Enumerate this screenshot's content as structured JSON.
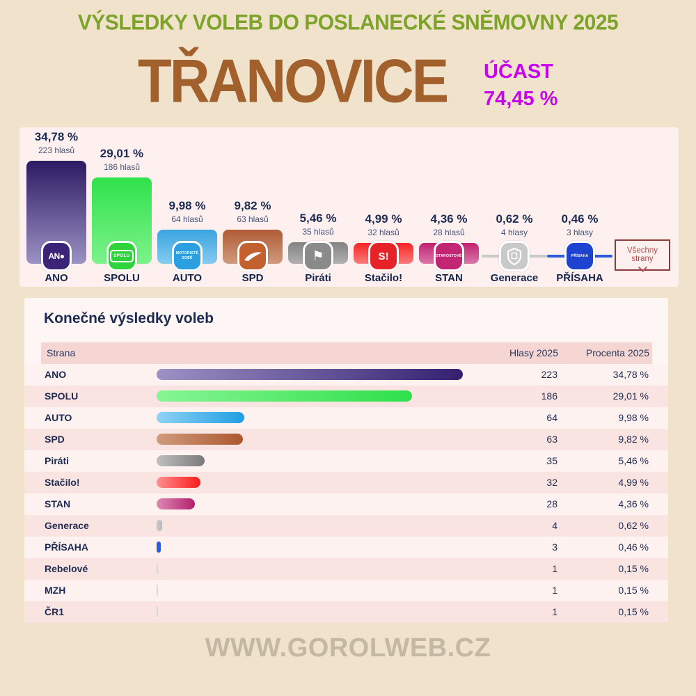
{
  "header": {
    "title": "VÝSLEDKY VOLEB DO POSLANECKÉ SNĚMOVNY 2025",
    "title_color": "#7da32b",
    "municipality": "TŘANOVICE",
    "municipality_color": "#a2612c",
    "turnout_label": "ÚČAST",
    "turnout_value": "74,45 %",
    "turnout_color": "#c703f0",
    "background_color": "#f1e3cb"
  },
  "chart": {
    "all_parties_button": "Všechny strany",
    "parties": [
      {
        "name": "ANO",
        "pct_label": "34,78 %",
        "votes_label": "223 hlasů",
        "pct": 34.78,
        "votes": 223,
        "bar_top": "#2c1a63",
        "bar_bottom": "#9c92c4",
        "icon_bg": "#3b2478",
        "icon_kind": "text",
        "icon_text": "AN●"
      },
      {
        "name": "SPOLU",
        "pct_label": "29,01 %",
        "votes_label": "186 hlasů",
        "pct": 29.01,
        "votes": 186,
        "bar_top": "#2fe24b",
        "bar_bottom": "#7df28b",
        "icon_bg": "#2fd33c",
        "icon_kind": "box-text",
        "icon_text": "SPOLU"
      },
      {
        "name": "AUTO",
        "pct_label": "9,98 %",
        "votes_label": "64 hlasů",
        "pct": 9.98,
        "votes": 64,
        "bar_top": "#3ba4e0",
        "bar_bottom": "#85cbf0",
        "icon_bg": "#2b9fe0",
        "icon_kind": "tiny-text",
        "icon_text": "MOTORISTÉ SOBĚ"
      },
      {
        "name": "SPD",
        "pct_label": "9,82 %",
        "votes_label": "63 hlasů",
        "pct": 9.82,
        "votes": 63,
        "bar_top": "#b05c35",
        "bar_bottom": "#d09a7d",
        "icon_bg": "#c2602f",
        "icon_kind": "swoosh",
        "icon_text": ""
      },
      {
        "name": "Piráti",
        "pct_label": "5,46 %",
        "votes_label": "35 hlasů",
        "pct": 5.46,
        "votes": 35,
        "bar_top": "#838383",
        "bar_bottom": "#b0b0b0",
        "icon_bg": "#8a8a8a",
        "icon_kind": "flag",
        "icon_text": "⚑"
      },
      {
        "name": "Stačilo!",
        "pct_label": "4,99 %",
        "votes_label": "32 hlasů",
        "pct": 4.99,
        "votes": 32,
        "bar_top": "#f42525",
        "bar_bottom": "#fb7b7b",
        "icon_bg": "#e82328",
        "icon_kind": "text-lg",
        "icon_text": "S!"
      },
      {
        "name": "STAN",
        "pct_label": "4,36 %",
        "votes_label": "28 hlasů",
        "pct": 4.36,
        "votes": 28,
        "bar_top": "#c02270",
        "bar_bottom": "#d978ab",
        "icon_bg": "#c22573",
        "icon_kind": "tiny-text",
        "icon_text": "STAROSTOVÉ"
      },
      {
        "name": "Generace",
        "pct_label": "0,62 %",
        "votes_label": "4 hlasy",
        "pct": 0.62,
        "votes": 4,
        "bar_top": "#c9c9c9",
        "bar_bottom": "#c9c9c9",
        "icon_bg": "#c9c9c9",
        "icon_kind": "shield",
        "icon_text": ""
      },
      {
        "name": "PŘÍSAHA",
        "pct_label": "0,46 %",
        "votes_label": "3 hlasy",
        "pct": 0.46,
        "votes": 3,
        "bar_top": "#2b5cd8",
        "bar_bottom": "#2b5cd8",
        "icon_bg": "#1d43cf",
        "icon_kind": "tiny-text",
        "icon_text": "PŘÍSAHA"
      }
    ]
  },
  "chart_data": {
    "type": "bar",
    "title": "",
    "categories": [
      "ANO",
      "SPOLU",
      "AUTO",
      "SPD",
      "Piráti",
      "Stačilo!",
      "STAN",
      "Generace",
      "PŘÍSAHA"
    ],
    "series": [
      {
        "name": "Procenta",
        "values": [
          34.78,
          29.01,
          9.98,
          9.82,
          5.46,
          4.99,
          4.36,
          0.62,
          0.46
        ]
      },
      {
        "name": "Hlasy",
        "values": [
          223,
          186,
          64,
          63,
          35,
          32,
          28,
          4,
          3
        ]
      }
    ],
    "data_labels": [
      "34,78 %",
      "29,01 %",
      "9,98 %",
      "9,82 %",
      "5,46 %",
      "4,99 %",
      "4,36 %",
      "0,62 %",
      "0,46 %"
    ],
    "votes_labels": [
      "223 hlasů",
      "186 hlasů",
      "64 hlasů",
      "63 hlasů",
      "35 hlasů",
      "32 hlasů",
      "28 hlasů",
      "4 hlasy",
      "3 hlasy"
    ],
    "bar_colors": [
      "#2c1a63",
      "#2fe24b",
      "#3ba4e0",
      "#b05c35",
      "#838383",
      "#f42525",
      "#c02270",
      "#c9c9c9",
      "#2b5cd8"
    ],
    "xlabel": "",
    "ylabel": "",
    "legend": false,
    "grid": false,
    "ylim": [
      0,
      40
    ]
  },
  "table": {
    "title": "Konečné výsledky voleb",
    "columns": [
      "Strana",
      "Hlasy 2025",
      "Procenta 2025"
    ],
    "max_votes": 223,
    "rows": [
      {
        "name": "ANO",
        "votes": "223",
        "pct": "34,78 %",
        "votes_n": 223,
        "bar_from": "#9c92c4",
        "bar_to": "#342070"
      },
      {
        "name": "SPOLU",
        "votes": "186",
        "pct": "29,01 %",
        "votes_n": 186,
        "bar_from": "#86f593",
        "bar_to": "#2ee04a"
      },
      {
        "name": "AUTO",
        "votes": "64",
        "pct": "9,98 %",
        "votes_n": 64,
        "bar_from": "#8fd2f4",
        "bar_to": "#209ee4"
      },
      {
        "name": "SPD",
        "votes": "63",
        "pct": "9,82 %",
        "votes_n": 63,
        "bar_from": "#d09a7d",
        "bar_to": "#ad5830"
      },
      {
        "name": "Piráti",
        "votes": "35",
        "pct": "5,46 %",
        "votes_n": 35,
        "bar_from": "#c0c0c0",
        "bar_to": "#7a7a7a"
      },
      {
        "name": "Stačilo!",
        "votes": "32",
        "pct": "4,99 %",
        "votes_n": 32,
        "bar_from": "#ff9090",
        "bar_to": "#fb1b1b"
      },
      {
        "name": "STAN",
        "votes": "28",
        "pct": "4,36 %",
        "votes_n": 28,
        "bar_from": "#dc8ab4",
        "bar_to": "#b51f6c"
      },
      {
        "name": "Generace",
        "votes": "4",
        "pct": "0,62 %",
        "votes_n": 4,
        "bar_from": "#c9c9c9",
        "bar_to": "#b9b9b9"
      },
      {
        "name": "PŘÍSAHA",
        "votes": "3",
        "pct": "0,46 %",
        "votes_n": 3,
        "bar_from": "#2b5cd8",
        "bar_to": "#2b5cd8"
      },
      {
        "name": "Rebelové",
        "votes": "1",
        "pct": "0,15 %",
        "votes_n": 1,
        "bar_from": "#d8d8d8",
        "bar_to": "#d8d8d8"
      },
      {
        "name": "MZH",
        "votes": "1",
        "pct": "0,15 %",
        "votes_n": 1,
        "bar_from": "#d8d8d8",
        "bar_to": "#d8d8d8"
      },
      {
        "name": "ČR1",
        "votes": "1",
        "pct": "0,15 %",
        "votes_n": 1,
        "bar_from": "#d8d8d8",
        "bar_to": "#d8d8d8"
      }
    ]
  },
  "footer": {
    "site": "WWW.GOROLWEB.CZ"
  }
}
